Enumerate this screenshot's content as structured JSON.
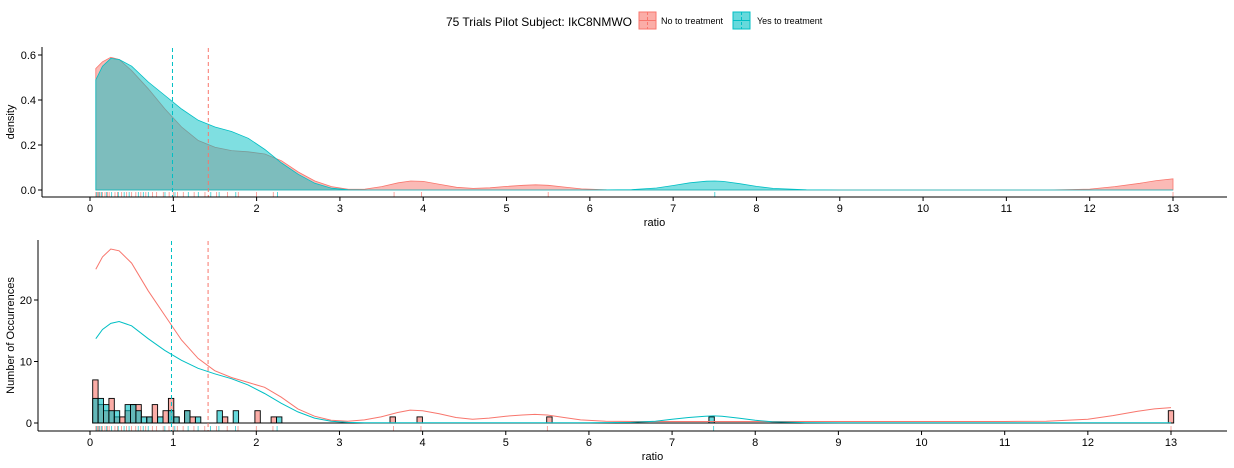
{
  "legend": {
    "title": "75 Trials Pilot Subject:  IkC8NMWO",
    "entries": [
      {
        "label": "No to treatment",
        "color": "#F8766D"
      },
      {
        "label": "Yes to treatment",
        "color": "#00BFC4"
      }
    ]
  },
  "chart_data": [
    {
      "type": "area",
      "xlabel": "ratio",
      "ylabel": "density",
      "xlim": [
        0,
        13
      ],
      "ylim": [
        0,
        0.6
      ],
      "xticks": [
        "0",
        "1",
        "2",
        "3",
        "4",
        "5",
        "6",
        "7",
        "8",
        "9",
        "10",
        "11",
        "12",
        "13"
      ],
      "yticks": [
        "0.0",
        "0.2",
        "0.4",
        "0.6"
      ],
      "grid": false,
      "series": [
        {
          "name": "No to treatment",
          "x": [
            0.07,
            0.15,
            0.25,
            0.35,
            0.5,
            0.7,
            0.9,
            1.1,
            1.3,
            1.5,
            1.7,
            1.9,
            2.1,
            2.3,
            2.5,
            2.7,
            2.9,
            3.1,
            3.3,
            3.5,
            3.7,
            3.85,
            4.0,
            4.2,
            4.4,
            4.6,
            4.8,
            5.0,
            5.2,
            5.35,
            5.5,
            5.7,
            5.9,
            6.2,
            6.6,
            7.0,
            7.5,
            8.0,
            9.0,
            10.0,
            11.0,
            11.5,
            12.0,
            12.3,
            12.6,
            12.8,
            13.0
          ],
          "y": [
            0.54,
            0.57,
            0.59,
            0.58,
            0.53,
            0.45,
            0.36,
            0.28,
            0.22,
            0.19,
            0.175,
            0.17,
            0.16,
            0.13,
            0.08,
            0.04,
            0.015,
            0.003,
            0.004,
            0.015,
            0.032,
            0.04,
            0.038,
            0.025,
            0.012,
            0.007,
            0.01,
            0.016,
            0.021,
            0.023,
            0.021,
            0.013,
            0.005,
            0.001,
            0.0,
            0.0,
            0.0,
            0.0,
            0.0,
            0.0,
            0.0,
            0.0,
            0.004,
            0.015,
            0.03,
            0.042,
            0.05
          ]
        },
        {
          "name": "Yes to treatment",
          "x": [
            0.07,
            0.15,
            0.25,
            0.35,
            0.5,
            0.7,
            0.9,
            1.1,
            1.3,
            1.5,
            1.7,
            1.9,
            2.1,
            2.3,
            2.5,
            2.7,
            2.9,
            3.1,
            3.3,
            3.6,
            4.0,
            5.0,
            6.0,
            6.5,
            6.8,
            7.0,
            7.2,
            7.4,
            7.5,
            7.6,
            7.8,
            8.0,
            8.2,
            8.6,
            9.0,
            10.0,
            11.0,
            12.0,
            13.0
          ],
          "y": [
            0.49,
            0.55,
            0.585,
            0.58,
            0.55,
            0.48,
            0.42,
            0.36,
            0.31,
            0.28,
            0.26,
            0.23,
            0.18,
            0.12,
            0.07,
            0.03,
            0.008,
            0.001,
            0.0,
            0.0,
            0.0,
            0.0,
            0.0,
            0.002,
            0.009,
            0.02,
            0.032,
            0.039,
            0.04,
            0.038,
            0.028,
            0.016,
            0.007,
            0.001,
            0.0,
            0.0,
            0.0,
            0.0,
            0.0
          ]
        }
      ],
      "vlines": [
        {
          "series": "Yes to treatment",
          "x": 0.99
        },
        {
          "series": "No to treatment",
          "x": 1.42
        }
      ],
      "rug": {
        "No to treatment": [
          0.07,
          0.09,
          0.1,
          0.12,
          0.15,
          0.18,
          0.21,
          0.23,
          0.3,
          0.33,
          0.38,
          0.44,
          0.5,
          0.55,
          0.61,
          0.67,
          0.75,
          0.8,
          0.88,
          0.95,
          1.0,
          1.05,
          1.12,
          1.25,
          1.38,
          1.52,
          1.65,
          1.78,
          2.0,
          2.2,
          3.65,
          3.98,
          5.5,
          13.0
        ],
        "Yes to treatment": [
          0.08,
          0.11,
          0.14,
          0.2,
          0.26,
          0.34,
          0.41,
          0.47,
          0.58,
          0.64,
          0.7,
          0.9,
          1.02,
          1.18,
          1.3,
          1.45,
          1.55,
          1.75,
          2.25,
          7.5
        ]
      }
    },
    {
      "type": "bar",
      "xlabel": "ratio",
      "ylabel": "Number of Occurrences",
      "xlim": [
        0,
        13
      ],
      "ylim": [
        0,
        28
      ],
      "xticks": [
        "0",
        "1",
        "2",
        "3",
        "4",
        "5",
        "6",
        "7",
        "8",
        "9",
        "10",
        "11",
        "12",
        "13"
      ],
      "yticks": [
        "0",
        "10",
        "20"
      ],
      "grid": false,
      "bin_width": 0.065,
      "series": [
        {
          "name": "No to treatment",
          "bins": [
            [
              0.065,
              7
            ],
            [
              0.13,
              3
            ],
            [
              0.195,
              2
            ],
            [
              0.26,
              4
            ],
            [
              0.325,
              1
            ],
            [
              0.39,
              1
            ],
            [
              0.455,
              2
            ],
            [
              0.52,
              3
            ],
            [
              0.585,
              3
            ],
            [
              0.715,
              1
            ],
            [
              0.78,
              3
            ],
            [
              0.91,
              2
            ],
            [
              0.975,
              4
            ],
            [
              1.04,
              1
            ],
            [
              1.17,
              2
            ],
            [
              1.235,
              1
            ],
            [
              1.625,
              1
            ],
            [
              2.015,
              2
            ],
            [
              2.21,
              1
            ],
            [
              3.64,
              1
            ],
            [
              3.965,
              1
            ],
            [
              5.525,
              1
            ],
            [
              13.0,
              2
            ]
          ],
          "curve_x": [
            0.07,
            0.15,
            0.25,
            0.35,
            0.5,
            0.7,
            0.9,
            1.1,
            1.3,
            1.5,
            1.7,
            1.9,
            2.1,
            2.3,
            2.5,
            2.7,
            2.9,
            3.1,
            3.3,
            3.5,
            3.7,
            3.85,
            4.0,
            4.2,
            4.4,
            4.6,
            4.8,
            5.0,
            5.2,
            5.35,
            5.5,
            5.7,
            5.9,
            6.2,
            6.6,
            7.0,
            7.5,
            8.0,
            9.0,
            10.0,
            11.0,
            11.5,
            12.0,
            12.3,
            12.6,
            12.8,
            13.0
          ],
          "curve_y": [
            25,
            27,
            28.3,
            28,
            26,
            21.5,
            17.5,
            13.5,
            10.5,
            8.5,
            7.4,
            6.6,
            5.8,
            4.2,
            2.3,
            1.1,
            0.45,
            0.3,
            0.5,
            1.0,
            1.7,
            2.1,
            2.0,
            1.5,
            0.9,
            0.6,
            0.8,
            1.1,
            1.3,
            1.4,
            1.3,
            0.9,
            0.5,
            0.3,
            0.25,
            0.25,
            0.25,
            0.25,
            0.25,
            0.25,
            0.25,
            0.3,
            0.6,
            1.2,
            1.9,
            2.3,
            2.5
          ]
        },
        {
          "name": "Yes to treatment",
          "bins": [
            [
              0.065,
              4
            ],
            [
              0.13,
              4
            ],
            [
              0.195,
              3
            ],
            [
              0.26,
              2
            ],
            [
              0.325,
              2
            ],
            [
              0.455,
              3
            ],
            [
              0.52,
              3
            ],
            [
              0.585,
              2
            ],
            [
              0.65,
              1
            ],
            [
              0.715,
              1
            ],
            [
              0.845,
              1
            ],
            [
              0.975,
              2
            ],
            [
              1.04,
              1
            ],
            [
              1.17,
              2
            ],
            [
              1.3,
              1
            ],
            [
              1.56,
              2
            ],
            [
              1.755,
              2
            ],
            [
              2.275,
              1
            ],
            [
              7.475,
              1
            ]
          ],
          "curve_x": [
            0.07,
            0.15,
            0.25,
            0.35,
            0.5,
            0.7,
            0.9,
            1.1,
            1.3,
            1.5,
            1.7,
            1.9,
            2.1,
            2.3,
            2.5,
            2.7,
            2.9,
            3.1,
            3.3,
            3.6,
            4.0,
            5.0,
            6.0,
            6.5,
            6.8,
            7.0,
            7.2,
            7.4,
            7.5,
            7.6,
            7.8,
            8.0,
            8.2,
            8.6,
            9.0,
            10.0,
            11.0,
            12.0,
            13.0
          ],
          "curve_y": [
            13.7,
            15.2,
            16.2,
            16.5,
            15.8,
            13.7,
            11.8,
            10.2,
            8.9,
            8.0,
            7.2,
            6.2,
            4.8,
            3.2,
            1.8,
            0.8,
            0.3,
            0.1,
            0.05,
            0.05,
            0.05,
            0.05,
            0.05,
            0.1,
            0.3,
            0.6,
            0.9,
            1.1,
            1.15,
            1.1,
            0.8,
            0.45,
            0.2,
            0.06,
            0.05,
            0.05,
            0.05,
            0.05,
            0.05
          ]
        }
      ],
      "vlines": [
        {
          "series": "Yes to treatment",
          "x": 0.98
        },
        {
          "series": "No to treatment",
          "x": 1.42
        }
      ]
    }
  ]
}
